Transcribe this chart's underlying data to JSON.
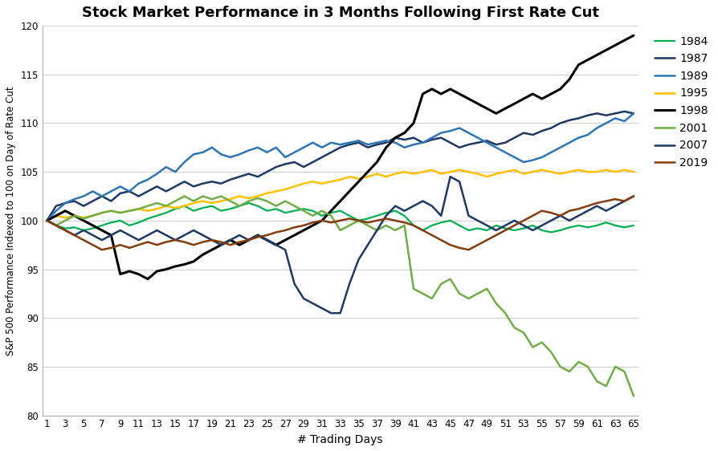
{
  "title": "Stock Market Performance in 3 Months Following First Rate Cut",
  "xlabel": "# Trading Days",
  "ylabel": "S&P 500 Performance Indexed to 100 on Day of Rate Cut",
  "ylim": [
    80,
    120
  ],
  "xlim": [
    1,
    65
  ],
  "yticks": [
    80,
    85,
    90,
    95,
    100,
    105,
    110,
    115,
    120
  ],
  "xticks": [
    1,
    3,
    5,
    7,
    9,
    11,
    13,
    15,
    17,
    19,
    21,
    23,
    25,
    27,
    29,
    31,
    33,
    35,
    37,
    39,
    41,
    43,
    45,
    47,
    49,
    51,
    53,
    55,
    57,
    59,
    61,
    63,
    65
  ],
  "series": {
    "1984": {
      "color": "#00b050",
      "linewidth": 1.6,
      "data": [
        100,
        99.5,
        99.2,
        99.3,
        99.0,
        99.2,
        99.5,
        99.8,
        100.0,
        99.5,
        99.8,
        100.2,
        100.5,
        100.8,
        101.2,
        101.5,
        101.0,
        101.3,
        101.5,
        101.0,
        101.2,
        101.5,
        101.8,
        101.5,
        101.0,
        101.2,
        100.8,
        101.0,
        101.2,
        101.0,
        100.5,
        100.8,
        101.0,
        100.5,
        100.0,
        100.2,
        100.5,
        100.8,
        101.0,
        100.5,
        99.5,
        99.0,
        99.5,
        99.8,
        100.0,
        99.5,
        99.0,
        99.2,
        99.0,
        99.5,
        99.2,
        99.0,
        99.2,
        99.5,
        99.0,
        98.8,
        99.0,
        99.3,
        99.5,
        99.3,
        99.5,
        99.8,
        99.5,
        99.3,
        99.5
      ]
    },
    "1987": {
      "color": "#1f3864",
      "linewidth": 1.8,
      "data": [
        100,
        101.5,
        101.8,
        102.0,
        101.5,
        102.0,
        102.5,
        102.0,
        102.8,
        103.0,
        102.5,
        103.0,
        103.5,
        103.0,
        103.5,
        104.0,
        103.5,
        103.8,
        104.0,
        103.8,
        104.2,
        104.5,
        104.8,
        104.5,
        105.0,
        105.5,
        105.8,
        106.0,
        105.5,
        106.0,
        106.5,
        107.0,
        107.5,
        107.8,
        108.0,
        107.5,
        107.8,
        108.0,
        108.5,
        108.3,
        108.5,
        108.0,
        108.3,
        108.5,
        108.0,
        107.5,
        107.8,
        108.0,
        108.2,
        107.8,
        108.0,
        108.5,
        109.0,
        108.8,
        109.2,
        109.5,
        110.0,
        110.3,
        110.5,
        110.8,
        111.0,
        110.8,
        111.0,
        111.2,
        111.0
      ]
    },
    "1989": {
      "color": "#2e75b6",
      "linewidth": 1.8,
      "data": [
        100,
        101.0,
        101.8,
        102.2,
        102.5,
        103.0,
        102.5,
        103.0,
        103.5,
        103.0,
        103.8,
        104.2,
        104.8,
        105.5,
        105.0,
        106.0,
        106.8,
        107.0,
        107.5,
        106.8,
        106.5,
        106.8,
        107.2,
        107.5,
        107.0,
        107.5,
        106.5,
        107.0,
        107.5,
        108.0,
        107.5,
        108.0,
        107.8,
        108.0,
        108.2,
        107.8,
        108.0,
        108.2,
        108.0,
        107.5,
        107.8,
        108.0,
        108.5,
        109.0,
        109.2,
        109.5,
        109.0,
        108.5,
        108.0,
        107.5,
        107.0,
        106.5,
        106.0,
        106.2,
        106.5,
        107.0,
        107.5,
        108.0,
        108.5,
        108.8,
        109.5,
        110.0,
        110.5,
        110.2,
        111.0
      ]
    },
    "1995": {
      "color": "#ffc000",
      "linewidth": 1.8,
      "data": [
        100,
        100.5,
        100.3,
        100.5,
        100.3,
        100.5,
        100.8,
        101.0,
        100.8,
        101.0,
        101.2,
        101.0,
        101.2,
        101.5,
        101.3,
        101.5,
        101.8,
        102.0,
        101.8,
        102.0,
        102.2,
        102.5,
        102.3,
        102.5,
        102.8,
        103.0,
        103.2,
        103.5,
        103.8,
        104.0,
        103.8,
        104.0,
        104.2,
        104.5,
        104.3,
        104.5,
        104.8,
        104.5,
        104.8,
        105.0,
        104.8,
        105.0,
        105.2,
        104.8,
        105.0,
        105.2,
        105.0,
        104.8,
        104.5,
        104.8,
        105.0,
        105.2,
        104.8,
        105.0,
        105.2,
        105.0,
        104.8,
        105.0,
        105.2,
        105.0,
        105.0,
        105.2,
        105.0,
        105.2,
        105.0
      ]
    },
    "1998": {
      "color": "#000000",
      "linewidth": 2.2,
      "data": [
        100,
        100.5,
        101.0,
        100.5,
        100.0,
        99.5,
        99.0,
        98.5,
        94.5,
        94.8,
        94.5,
        94.0,
        94.8,
        95.0,
        95.3,
        95.5,
        95.8,
        96.5,
        97.0,
        97.5,
        98.0,
        97.5,
        98.0,
        98.5,
        98.0,
        97.5,
        98.0,
        98.5,
        99.0,
        99.5,
        100.0,
        101.0,
        102.0,
        103.0,
        104.0,
        105.0,
        106.0,
        107.5,
        108.5,
        109.0,
        110.0,
        113.0,
        113.5,
        113.0,
        113.5,
        113.0,
        112.5,
        112.0,
        111.5,
        111.0,
        111.5,
        112.0,
        112.5,
        113.0,
        112.5,
        113.0,
        113.5,
        114.5,
        116.0,
        116.5,
        117.0,
        117.5,
        118.0,
        118.5,
        119.0
      ]
    },
    "2001": {
      "color": "#70ad47",
      "linewidth": 1.8,
      "data": [
        100,
        99.5,
        100.0,
        100.5,
        100.2,
        100.5,
        100.8,
        101.0,
        100.8,
        101.0,
        101.2,
        101.5,
        101.8,
        101.5,
        102.0,
        102.5,
        102.0,
        102.5,
        102.2,
        102.5,
        102.0,
        101.5,
        102.0,
        102.3,
        102.0,
        101.5,
        102.0,
        101.5,
        101.0,
        100.5,
        101.0,
        100.5,
        99.0,
        99.5,
        100.0,
        99.5,
        99.0,
        99.5,
        99.0,
        99.5,
        93.0,
        92.5,
        92.0,
        93.5,
        94.0,
        92.5,
        92.0,
        92.5,
        93.0,
        91.5,
        90.5,
        89.0,
        88.5,
        87.0,
        87.5,
        86.5,
        85.0,
        84.5,
        85.5,
        85.0,
        83.5,
        83.0,
        85.0,
        84.5,
        82.0
      ]
    },
    "2007": {
      "color": "#203864",
      "linewidth": 1.8,
      "data": [
        100,
        99.5,
        99.0,
        98.5,
        99.0,
        98.5,
        98.0,
        98.5,
        99.0,
        98.5,
        98.0,
        98.5,
        99.0,
        98.5,
        98.0,
        98.5,
        99.0,
        98.5,
        98.0,
        97.5,
        98.0,
        98.5,
        98.0,
        98.5,
        98.0,
        97.5,
        97.0,
        93.5,
        92.0,
        91.5,
        91.0,
        90.5,
        90.5,
        93.5,
        96.0,
        97.5,
        99.0,
        100.5,
        101.5,
        101.0,
        101.5,
        102.0,
        101.5,
        100.5,
        104.5,
        104.0,
        100.5,
        100.0,
        99.5,
        99.0,
        99.5,
        100.0,
        99.5,
        99.0,
        99.5,
        100.0,
        100.5,
        100.0,
        100.5,
        101.0,
        101.5,
        101.0,
        101.5,
        102.0,
        102.5
      ]
    },
    "2019": {
      "color": "#843c0c",
      "linewidth": 1.8,
      "data": [
        100,
        99.5,
        99.0,
        98.5,
        98.0,
        97.5,
        97.0,
        97.2,
        97.5,
        97.2,
        97.5,
        97.8,
        97.5,
        97.8,
        98.0,
        97.8,
        97.5,
        97.8,
        98.0,
        97.8,
        97.5,
        97.8,
        98.0,
        98.3,
        98.5,
        98.8,
        99.0,
        99.3,
        99.5,
        99.8,
        100.0,
        99.8,
        100.0,
        100.2,
        100.0,
        99.8,
        100.0,
        100.2,
        100.0,
        99.8,
        99.5,
        99.0,
        98.5,
        98.0,
        97.5,
        97.2,
        97.0,
        97.5,
        98.0,
        98.5,
        99.0,
        99.5,
        100.0,
        100.5,
        101.0,
        100.8,
        100.5,
        101.0,
        101.2,
        101.5,
        101.8,
        102.0,
        102.2,
        102.0,
        102.5
      ]
    }
  },
  "legend_order": [
    "1984",
    "1987",
    "1989",
    "1995",
    "1998",
    "2001",
    "2007",
    "2019"
  ],
  "background_color": "#ffffff",
  "title_fontsize": 13,
  "label_fontsize": 10,
  "tick_fontsize": 8.5
}
